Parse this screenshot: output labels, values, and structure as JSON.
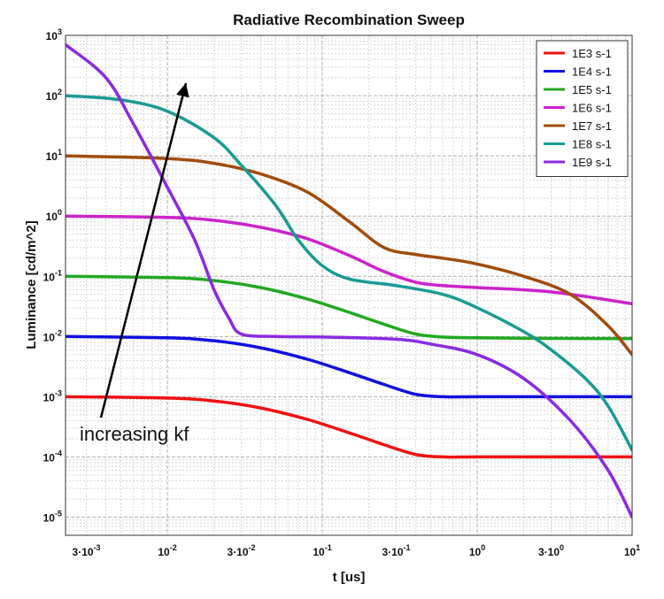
{
  "chart_data": {
    "type": "line",
    "title": "Radiative Recombination Sweep",
    "xlabel": "t [us]",
    "ylabel": "Luminance [cd/m^2]",
    "xscale": "log",
    "yscale": "log",
    "xlim": [
      0.0022,
      10
    ],
    "ylim": [
      5e-06,
      1000
    ],
    "grid": true,
    "legend_position": "top-right",
    "x_ticks": [
      {
        "value": 0.003,
        "mant": "3·10",
        "exp": "-3"
      },
      {
        "value": 0.01,
        "mant": "10",
        "exp": "-2"
      },
      {
        "value": 0.03,
        "mant": "3·10",
        "exp": "-2"
      },
      {
        "value": 0.1,
        "mant": "10",
        "exp": "-1"
      },
      {
        "value": 0.3,
        "mant": "3·10",
        "exp": "-1"
      },
      {
        "value": 1,
        "mant": "10",
        "exp": "0"
      },
      {
        "value": 3,
        "mant": "3·10",
        "exp": "0"
      },
      {
        "value": 10,
        "mant": "10",
        "exp": "1"
      }
    ],
    "y_ticks": [
      {
        "value": 1000,
        "mant": "10",
        "exp": "3"
      },
      {
        "value": 100,
        "mant": "10",
        "exp": "2"
      },
      {
        "value": 10,
        "mant": "10",
        "exp": "1"
      },
      {
        "value": 1,
        "mant": "10",
        "exp": "0"
      },
      {
        "value": 0.1,
        "mant": "10",
        "exp": "-1"
      },
      {
        "value": 0.01,
        "mant": "10",
        "exp": "-2"
      },
      {
        "value": 0.001,
        "mant": "10",
        "exp": "-3"
      },
      {
        "value": 0.0001,
        "mant": "10",
        "exp": "-4"
      },
      {
        "value": 1e-05,
        "mant": "10",
        "exp": "-5"
      }
    ],
    "series": [
      {
        "name": "1E3 s-1",
        "color": "#f01010",
        "x": [
          0.0022,
          0.01,
          0.02,
          0.04,
          0.08,
          0.15,
          0.25,
          0.4,
          0.6,
          1,
          3,
          10
        ],
        "y": [
          0.001,
          0.00095,
          0.00085,
          0.00065,
          0.00042,
          0.00025,
          0.00016,
          0.00011,
          0.0001,
          0.0001,
          0.0001,
          0.0001
        ]
      },
      {
        "name": "1E4 s-1",
        "color": "#1010e0",
        "x": [
          0.0022,
          0.01,
          0.02,
          0.04,
          0.08,
          0.15,
          0.25,
          0.4,
          0.6,
          1,
          3,
          10
        ],
        "y": [
          0.01,
          0.0095,
          0.0085,
          0.0065,
          0.0042,
          0.0025,
          0.0016,
          0.0011,
          0.001,
          0.001,
          0.001,
          0.001
        ]
      },
      {
        "name": "1E5 s-1",
        "color": "#22a822",
        "x": [
          0.0022,
          0.01,
          0.02,
          0.04,
          0.08,
          0.15,
          0.25,
          0.4,
          0.6,
          1,
          3,
          10
        ],
        "y": [
          0.1,
          0.095,
          0.085,
          0.065,
          0.042,
          0.025,
          0.016,
          0.011,
          0.0098,
          0.0095,
          0.0093,
          0.0092
        ]
      },
      {
        "name": "1E6 s-1",
        "color": "#cc22cc",
        "x": [
          0.0022,
          0.01,
          0.02,
          0.04,
          0.08,
          0.15,
          0.25,
          0.4,
          0.6,
          1,
          3,
          10
        ],
        "y": [
          1,
          0.95,
          0.85,
          0.65,
          0.42,
          0.22,
          0.12,
          0.08,
          0.07,
          0.065,
          0.055,
          0.035
        ]
      },
      {
        "name": "1E7 s-1",
        "color": "#a04c0c",
        "x": [
          0.0022,
          0.01,
          0.02,
          0.04,
          0.08,
          0.15,
          0.25,
          0.4,
          0.6,
          1,
          2,
          4,
          7,
          10
        ],
        "y": [
          10,
          9,
          7.5,
          5,
          2.5,
          0.8,
          0.3,
          0.23,
          0.2,
          0.16,
          0.1,
          0.05,
          0.015,
          0.005
        ]
      },
      {
        "name": "1E8 s-1",
        "color": "#1a9a94",
        "x": [
          0.0022,
          0.005,
          0.01,
          0.02,
          0.03,
          0.05,
          0.07,
          0.1,
          0.15,
          0.3,
          0.6,
          1,
          2,
          3,
          5,
          7,
          10
        ],
        "y": [
          100,
          85,
          55,
          20,
          7,
          1.5,
          0.4,
          0.15,
          0.09,
          0.07,
          0.05,
          0.03,
          0.012,
          0.006,
          0.002,
          0.0007,
          0.00013
        ]
      },
      {
        "name": "1E9 s-1",
        "color": "#8a2be2",
        "x": [
          0.0022,
          0.004,
          0.006,
          0.01,
          0.015,
          0.02,
          0.025,
          0.03,
          0.05,
          0.1,
          0.3,
          0.5,
          1,
          2,
          4,
          7,
          10
        ],
        "y": [
          700,
          200,
          35,
          3,
          0.4,
          0.06,
          0.02,
          0.011,
          0.01,
          0.0098,
          0.009,
          0.0075,
          0.005,
          0.002,
          0.0004,
          6e-05,
          1e-05
        ]
      }
    ],
    "annotation": {
      "text": "increasing kf",
      "arrow": true
    }
  }
}
